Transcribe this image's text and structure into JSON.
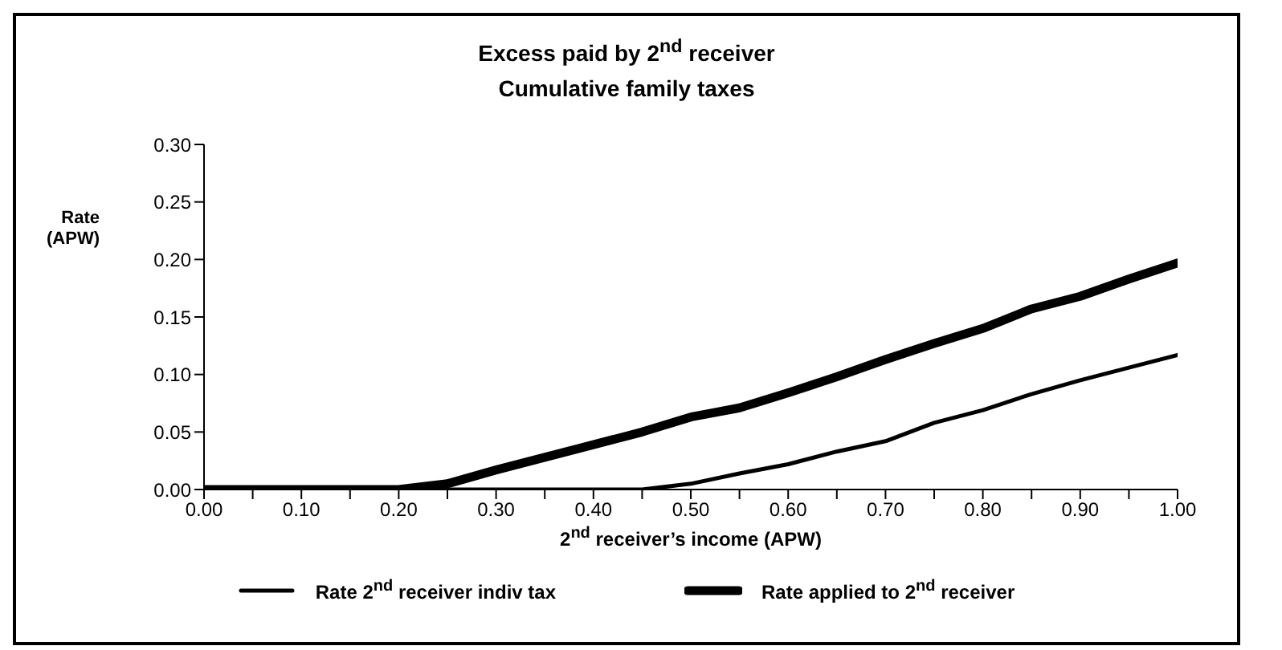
{
  "chart_data": {
    "type": "line",
    "title": "Excess paid by 2$^{nd}$ receiver",
    "subtitle": "Cumulative family taxes",
    "xlabel": "2$^{nd}$ receiver’s income (APW)",
    "ylabel": "Rate (APW)",
    "x": [
      0,
      0.05,
      0.1,
      0.15,
      0.2,
      0.25,
      0.3,
      0.35,
      0.4,
      0.45,
      0.5,
      0.55,
      0.6,
      0.65,
      0.7,
      0.75,
      0.8,
      0.85,
      0.9,
      0.95,
      1
    ],
    "series": [
      {
        "name": "Rate 2$^{nd}$ receiver indiv tax",
        "color": "#000000",
        "values": [
          0,
          0,
          0,
          0,
          0,
          0,
          0,
          0,
          0,
          0,
          0.005,
          0.014,
          0.022,
          0.033,
          0.042,
          0.058,
          0.069,
          0.083,
          0.095,
          0.106,
          0.117
        ]
      },
      {
        "name": "Rate applied to 2$^{nd}$ receiver",
        "color": "#000000",
        "values": [
          0,
          0,
          0,
          0,
          0,
          0.005,
          0.017,
          0.028,
          0.039,
          0.05,
          0.063,
          0.071,
          0.084,
          0.098,
          0.113,
          0.127,
          0.14,
          0.157,
          0.168,
          0.183,
          0.197
        ]
      }
    ],
    "xlim": [
      0,
      1
    ],
    "xticks": [
      {
        "value": 0,
        "label": "0.00"
      },
      {
        "value": 0.05,
        "label": null
      },
      {
        "value": 0.1,
        "label": "0.10"
      },
      {
        "value": 0.15,
        "label": null
      },
      {
        "value": 0.2,
        "label": "0.20"
      },
      {
        "value": 0.25,
        "label": null
      },
      {
        "value": 0.3,
        "label": "0.30"
      },
      {
        "value": 0.35,
        "label": null
      },
      {
        "value": 0.4,
        "label": "0.40"
      },
      {
        "value": 0.45,
        "label": null
      },
      {
        "value": 0.5,
        "label": "0.50"
      },
      {
        "value": 0.55,
        "label": null
      },
      {
        "value": 0.6,
        "label": "0.60"
      },
      {
        "value": 0.65,
        "label": null
      },
      {
        "value": 0.7,
        "label": "0.70"
      },
      {
        "value": 0.75,
        "label": null
      },
      {
        "value": 0.8,
        "label": "0.80"
      },
      {
        "value": 0.85,
        "label": null
      },
      {
        "value": 0.9,
        "label": "0.90"
      },
      {
        "value": 0.95,
        "label": null
      },
      {
        "value": 1,
        "label": "1.00"
      }
    ],
    "ylim": [
      0,
      0.3
    ],
    "yticks": [
      {
        "value": 0,
        "label": "0.00"
      },
      {
        "value": 0.05,
        "label": "0.05"
      },
      {
        "value": 0.1,
        "label": "0.10"
      },
      {
        "value": 0.15,
        "label": "0.15"
      },
      {
        "value": 0.2,
        "label": "0.20"
      },
      {
        "value": 0.25,
        "label": "0.25"
      },
      {
        "value": 0.3,
        "label": "0.30"
      }
    ],
    "grid": false,
    "legend": "bottom",
    "marker": "none",
    "line_style": "solid"
  }
}
